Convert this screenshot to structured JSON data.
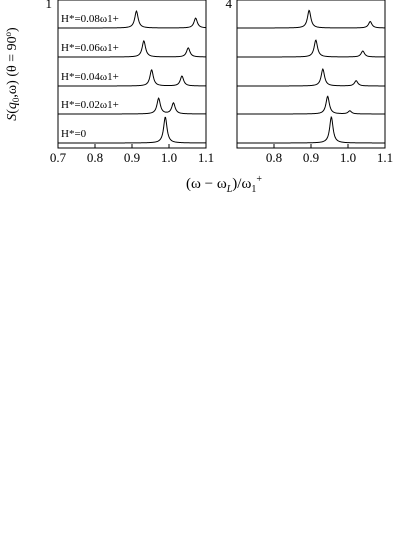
{
  "chart_data": [
    {
      "type": "line",
      "panel_label": "1",
      "ylabel": "S(q0, ω)  (θ = 90°)",
      "xlabel": "(ω − ωL)/ω1+",
      "xlim": [
        0.7,
        1.1
      ],
      "xticks": [
        "0.7",
        "0.8",
        "0.9",
        "1.0",
        "1.1"
      ],
      "grid": false,
      "series": [
        {
          "name": "H*=0",
          "peaks": [
            {
              "x": 0.99,
              "amp": 1.0
            }
          ]
        },
        {
          "name": "H*=0.02ω1+",
          "peaks": [
            {
              "x": 0.972,
              "amp": 0.6
            },
            {
              "x": 1.012,
              "amp": 0.42
            }
          ]
        },
        {
          "name": "H*=0.04ω1+",
          "peaks": [
            {
              "x": 0.953,
              "amp": 0.62
            },
            {
              "x": 1.035,
              "amp": 0.38
            }
          ]
        },
        {
          "name": "H*=0.06ω1+",
          "peaks": [
            {
              "x": 0.932,
              "amp": 0.62
            },
            {
              "x": 1.052,
              "amp": 0.35
            }
          ]
        },
        {
          "name": "H*=0.08ω1+",
          "peaks": [
            {
              "x": 0.912,
              "amp": 0.65
            },
            {
              "x": 1.072,
              "amp": 0.38
            }
          ]
        }
      ]
    },
    {
      "type": "line",
      "panel_label": "4",
      "xlim": [
        0.7,
        1.1
      ],
      "xticks": [
        "0.8",
        "0.9",
        "1.0",
        "1.1"
      ],
      "grid": false,
      "series": [
        {
          "name": "H*=0",
          "peaks": [
            {
              "x": 0.955,
              "amp": 1.0
            }
          ]
        },
        {
          "name": "H*=0.02ω1+",
          "peaks": [
            {
              "x": 0.945,
              "amp": 0.68
            },
            {
              "x": 1.005,
              "amp": 0.12
            }
          ]
        },
        {
          "name": "H*=0.04ω1+",
          "peaks": [
            {
              "x": 0.932,
              "amp": 0.65
            },
            {
              "x": 1.022,
              "amp": 0.2
            }
          ]
        },
        {
          "name": "H*=0.06ω1+",
          "peaks": [
            {
              "x": 0.913,
              "amp": 0.65
            },
            {
              "x": 1.04,
              "amp": 0.23
            }
          ]
        },
        {
          "name": "H*=0.08ω1+",
          "peaks": [
            {
              "x": 0.895,
              "amp": 0.68
            },
            {
              "x": 1.06,
              "amp": 0.25
            }
          ]
        }
      ]
    }
  ]
}
